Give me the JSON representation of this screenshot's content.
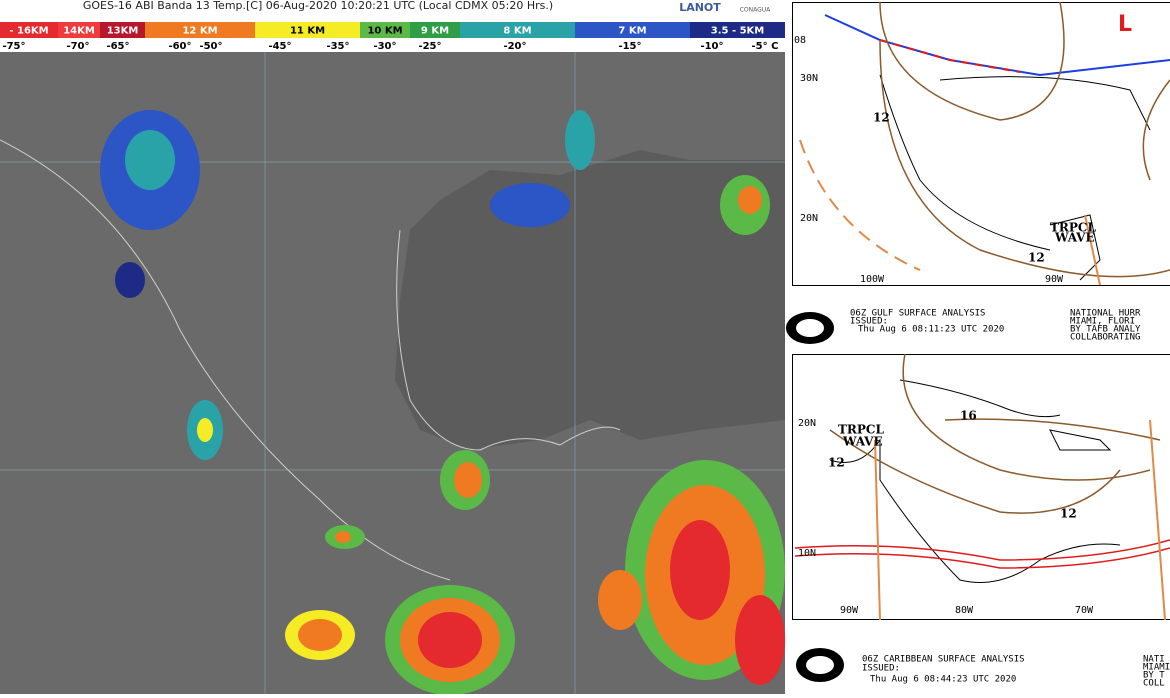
{
  "satellite": {
    "title": "GOES-16 ABI Banda 13 Temp.[C] 06-Aug-2020 10:20:21 UTC (Local CDMX  05:20 Hrs.)",
    "logos": [
      "LANOT",
      "CONAGUA"
    ],
    "scale": [
      {
        "label": "- 16KM",
        "color": "#e52a2f"
      },
      {
        "label": "14KM",
        "color": "#ef3b3b"
      },
      {
        "label": "13KM",
        "color": "#b8162a"
      },
      {
        "label": "12 KM",
        "color": "#f07a22"
      },
      {
        "label": "11 KM",
        "color": "#f6ec25"
      },
      {
        "label": "10 KM",
        "color": "#5bb947"
      },
      {
        "label": "9 KM",
        "color": "#2f9e46"
      },
      {
        "label": "8 KM",
        "color": "#2aa3a8"
      },
      {
        "label": "7 KM",
        "color": "#2c55c6"
      },
      {
        "label": "3.5 - 5KM",
        "color": "#1d2a86"
      }
    ],
    "temperatures": [
      "-75°",
      "-70°",
      "-65°",
      "-60°",
      "-50°",
      "-45°",
      "-35°",
      "-30°",
      "-25°",
      "-20°",
      "-15°",
      "-10°",
      "-5° C"
    ]
  },
  "gulf": {
    "lat_labels": [
      "30N",
      "20N"
    ],
    "lon_labels": [
      "100W",
      "90W"
    ],
    "corner": "08",
    "isobars": [
      "12",
      "12"
    ],
    "wave": [
      "TRPCL",
      "WAVE"
    ],
    "low": "L",
    "caption": {
      "title": "06Z GULF SURFACE ANALYSIS",
      "issued": "ISSUED:",
      "time": "Thu Aug 6 08:11:23 UTC 2020",
      "office": [
        "NATIONAL HURR",
        "MIAMI, FLORI",
        "BY TAFB ANALY",
        "COLLABORATING"
      ]
    }
  },
  "caribbean": {
    "lat_labels": [
      "20N",
      "10N"
    ],
    "lon_labels": [
      "90W",
      "80W",
      "70W"
    ],
    "isobars": [
      "16",
      "12",
      "12"
    ],
    "wave": [
      "TRPCL",
      "WAVE"
    ],
    "caption": {
      "title": "06Z CARIBBEAN SURFACE ANALYSIS",
      "issued": "ISSUED:",
      "time": "Thu Aug 6 08:44:23 UTC 2020",
      "office": [
        "NATI",
        "MIAMI",
        "BY T",
        "COLL"
      ]
    }
  }
}
